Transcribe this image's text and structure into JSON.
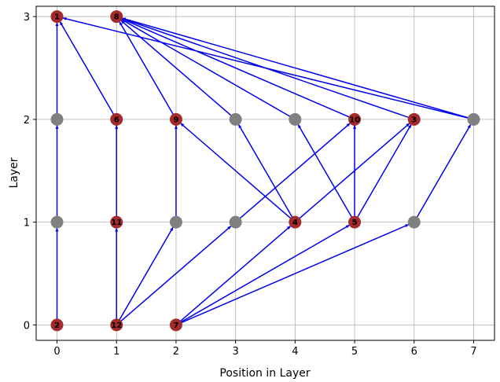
{
  "chart_data": {
    "type": "scatter",
    "title": "",
    "xlabel": "Position in Layer",
    "ylabel": "Layer",
    "xlim": [
      -0.35,
      7.35
    ],
    "ylim": [
      -0.15,
      3.1
    ],
    "xticks": [
      "0",
      "1",
      "2",
      "3",
      "4",
      "5",
      "6",
      "7"
    ],
    "yticks": [
      "0",
      "1",
      "2",
      "3"
    ],
    "grid": true,
    "colors": {
      "labeled_node": "#a52a2a",
      "dummy_node": "#808080",
      "edge": "#0000ee",
      "grid": "#b0b0b0"
    },
    "nodes": [
      {
        "label": "2",
        "x": 0,
        "y": 0,
        "kind": "labeled"
      },
      {
        "label": "12",
        "x": 1,
        "y": 0,
        "kind": "labeled"
      },
      {
        "label": "7",
        "x": 2,
        "y": 0,
        "kind": "labeled"
      },
      {
        "label": "",
        "x": 0,
        "y": 1,
        "kind": "dummy"
      },
      {
        "label": "11",
        "x": 1,
        "y": 1,
        "kind": "labeled"
      },
      {
        "label": "",
        "x": 2,
        "y": 1,
        "kind": "dummy"
      },
      {
        "label": "",
        "x": 3,
        "y": 1,
        "kind": "dummy"
      },
      {
        "label": "4",
        "x": 4,
        "y": 1,
        "kind": "labeled"
      },
      {
        "label": "5",
        "x": 5,
        "y": 1,
        "kind": "labeled"
      },
      {
        "label": "",
        "x": 6,
        "y": 1,
        "kind": "dummy"
      },
      {
        "label": "",
        "x": 0,
        "y": 2,
        "kind": "dummy"
      },
      {
        "label": "6",
        "x": 1,
        "y": 2,
        "kind": "labeled"
      },
      {
        "label": "9",
        "x": 2,
        "y": 2,
        "kind": "labeled"
      },
      {
        "label": "",
        "x": 3,
        "y": 2,
        "kind": "dummy"
      },
      {
        "label": "",
        "x": 4,
        "y": 2,
        "kind": "dummy"
      },
      {
        "label": "10",
        "x": 5,
        "y": 2,
        "kind": "labeled"
      },
      {
        "label": "3",
        "x": 6,
        "y": 2,
        "kind": "labeled"
      },
      {
        "label": "",
        "x": 7,
        "y": 2,
        "kind": "dummy"
      },
      {
        "label": "1",
        "x": 0,
        "y": 3,
        "kind": "labeled"
      },
      {
        "label": "8",
        "x": 1,
        "y": 3,
        "kind": "labeled"
      }
    ],
    "edges": [
      {
        "from": [
          0,
          0
        ],
        "to": [
          0,
          1
        ]
      },
      {
        "from": [
          1,
          0
        ],
        "to": [
          1,
          1
        ]
      },
      {
        "from": [
          1,
          0
        ],
        "to": [
          2,
          1
        ]
      },
      {
        "from": [
          1,
          0
        ],
        "to": [
          3,
          1
        ]
      },
      {
        "from": [
          2,
          0
        ],
        "to": [
          4,
          1
        ]
      },
      {
        "from": [
          2,
          0
        ],
        "to": [
          5,
          1
        ]
      },
      {
        "from": [
          2,
          0
        ],
        "to": [
          6,
          1
        ]
      },
      {
        "from": [
          0,
          1
        ],
        "to": [
          0,
          2
        ]
      },
      {
        "from": [
          1,
          1
        ],
        "to": [
          1,
          2
        ]
      },
      {
        "from": [
          2,
          1
        ],
        "to": [
          2,
          2
        ]
      },
      {
        "from": [
          3,
          1
        ],
        "to": [
          5,
          2
        ]
      },
      {
        "from": [
          4,
          1
        ],
        "to": [
          2,
          2
        ]
      },
      {
        "from": [
          4,
          1
        ],
        "to": [
          3,
          2
        ]
      },
      {
        "from": [
          4,
          1
        ],
        "to": [
          6,
          2
        ]
      },
      {
        "from": [
          5,
          1
        ],
        "to": [
          4,
          2
        ]
      },
      {
        "from": [
          5,
          1
        ],
        "to": [
          5,
          2
        ]
      },
      {
        "from": [
          5,
          1
        ],
        "to": [
          6,
          2
        ]
      },
      {
        "from": [
          6,
          1
        ],
        "to": [
          7,
          2
        ]
      },
      {
        "from": [
          0,
          2
        ],
        "to": [
          0,
          3
        ]
      },
      {
        "from": [
          1,
          2
        ],
        "to": [
          0,
          3
        ]
      },
      {
        "from": [
          7,
          2
        ],
        "to": [
          0,
          3
        ]
      },
      {
        "from": [
          2,
          2
        ],
        "to": [
          1,
          3
        ]
      },
      {
        "from": [
          3,
          2
        ],
        "to": [
          1,
          3
        ]
      },
      {
        "from": [
          4,
          2
        ],
        "to": [
          1,
          3
        ]
      },
      {
        "from": [
          5,
          2
        ],
        "to": [
          1,
          3
        ]
      },
      {
        "from": [
          6,
          2
        ],
        "to": [
          1,
          3
        ]
      },
      {
        "from": [
          7,
          2
        ],
        "to": [
          1,
          3
        ]
      }
    ]
  }
}
